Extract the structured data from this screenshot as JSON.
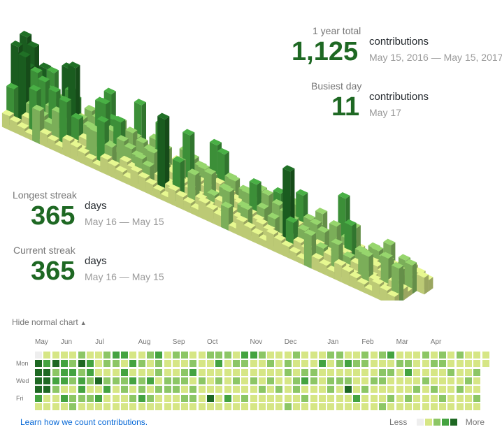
{
  "colors": {
    "l0": "#eeeeee",
    "l1": "#d6e685",
    "l2": "#8cc665",
    "l3": "#44a340",
    "l4": "#1e6823",
    "accent": "#1e6823",
    "link": "#0366d6"
  },
  "year_total": {
    "label": "1 year total",
    "value": "1,125",
    "unit": "contributions",
    "range": "May 15, 2016 — May 15, 2017"
  },
  "busiest_day": {
    "label": "Busiest day",
    "value": "11",
    "unit": "contributions",
    "range": "May 17"
  },
  "longest_streak": {
    "label": "Longest streak",
    "value": "365",
    "unit": "days",
    "range": "May 16 — May 15"
  },
  "current_streak": {
    "label": "Current streak",
    "value": "365",
    "unit": "days",
    "range": "May 16 — May 15"
  },
  "toggle": {
    "label": "Hide normal chart",
    "arrow": "▲"
  },
  "months": [
    "May",
    "Jun",
    "Jul",
    "Aug",
    "Sep",
    "Oct",
    "Nov",
    "Dec",
    "Jan",
    "Feb",
    "Mar",
    "Apr"
  ],
  "month_weeks": [
    0,
    3,
    7,
    12,
    16,
    20,
    25,
    29,
    34,
    38,
    42,
    46
  ],
  "days": [
    "Mon",
    "Wed",
    "Fri"
  ],
  "link": {
    "text": "Learn how we count contributions."
  },
  "legend": {
    "less": "Less",
    "more": "More"
  },
  "contribution_levels": [
    [
      0,
      4,
      4,
      4,
      4,
      3,
      1
    ],
    [
      1,
      3,
      4,
      4,
      4,
      1,
      1
    ],
    [
      1,
      4,
      2,
      3,
      2,
      1,
      1
    ],
    [
      1,
      3,
      3,
      3,
      1,
      3,
      1
    ],
    [
      1,
      2,
      3,
      2,
      1,
      2,
      2
    ],
    [
      2,
      4,
      2,
      3,
      3,
      2,
      1
    ],
    [
      1,
      3,
      3,
      2,
      1,
      2,
      1
    ],
    [
      1,
      1,
      1,
      4,
      1,
      3,
      1
    ],
    [
      2,
      2,
      1,
      2,
      3,
      1,
      1
    ],
    [
      3,
      2,
      1,
      2,
      1,
      1,
      1
    ],
    [
      3,
      1,
      3,
      2,
      2,
      1,
      1
    ],
    [
      1,
      3,
      1,
      3,
      1,
      2,
      1
    ],
    [
      1,
      2,
      1,
      2,
      2,
      3,
      1
    ],
    [
      2,
      1,
      1,
      3,
      1,
      2,
      1
    ],
    [
      3,
      2,
      2,
      1,
      2,
      1,
      1
    ],
    [
      1,
      1,
      1,
      2,
      2,
      1,
      1
    ],
    [
      2,
      1,
      1,
      2,
      2,
      1,
      1
    ],
    [
      2,
      1,
      2,
      2,
      1,
      2,
      1
    ],
    [
      1,
      2,
      3,
      1,
      2,
      2,
      1
    ],
    [
      1,
      1,
      1,
      2,
      1,
      1,
      1
    ],
    [
      2,
      1,
      1,
      1,
      1,
      4,
      1
    ],
    [
      2,
      3,
      1,
      2,
      1,
      1,
      1
    ],
    [
      2,
      1,
      1,
      1,
      1,
      3,
      1
    ],
    [
      1,
      2,
      1,
      2,
      1,
      1,
      1
    ],
    [
      3,
      2,
      1,
      1,
      1,
      2,
      1
    ],
    [
      3,
      1,
      1,
      2,
      1,
      1,
      1
    ],
    [
      2,
      1,
      1,
      1,
      2,
      1,
      1
    ],
    [
      1,
      2,
      1,
      2,
      1,
      1,
      1
    ],
    [
      1,
      1,
      1,
      1,
      2,
      1,
      1
    ],
    [
      1,
      2,
      2,
      1,
      1,
      1,
      2
    ],
    [
      2,
      1,
      1,
      2,
      2,
      1,
      1
    ],
    [
      1,
      1,
      2,
      3,
      1,
      2,
      1
    ],
    [
      1,
      1,
      2,
      2,
      1,
      1,
      1
    ],
    [
      1,
      3,
      1,
      1,
      1,
      1,
      1
    ],
    [
      2,
      1,
      1,
      2,
      2,
      1,
      1
    ],
    [
      2,
      2,
      1,
      2,
      1,
      1,
      1
    ],
    [
      1,
      3,
      1,
      2,
      4,
      1,
      1
    ],
    [
      1,
      2,
      1,
      1,
      1,
      3,
      1
    ],
    [
      2,
      2,
      1,
      1,
      2,
      1,
      1
    ],
    [
      1,
      1,
      1,
      2,
      1,
      1,
      1
    ],
    [
      2,
      1,
      2,
      2,
      1,
      1,
      2
    ],
    [
      3,
      1,
      2,
      1,
      1,
      2,
      1
    ],
    [
      1,
      2,
      1,
      1,
      1,
      1,
      1
    ],
    [
      1,
      2,
      3,
      1,
      1,
      2,
      1
    ],
    [
      1,
      1,
      1,
      1,
      2,
      1,
      1
    ],
    [
      2,
      1,
      1,
      2,
      1,
      1,
      1
    ],
    [
      1,
      2,
      1,
      1,
      2,
      1,
      1
    ],
    [
      2,
      2,
      1,
      1,
      1,
      2,
      1
    ],
    [
      1,
      1,
      2,
      1,
      1,
      1,
      1
    ],
    [
      2,
      1,
      1,
      1,
      2,
      1,
      1
    ],
    [
      1,
      1,
      1,
      2,
      1,
      1,
      1
    ],
    [
      1,
      1,
      2,
      1,
      1,
      2,
      1
    ],
    [
      1,
      1,
      1,
      1,
      1,
      1,
      1
    ]
  ]
}
